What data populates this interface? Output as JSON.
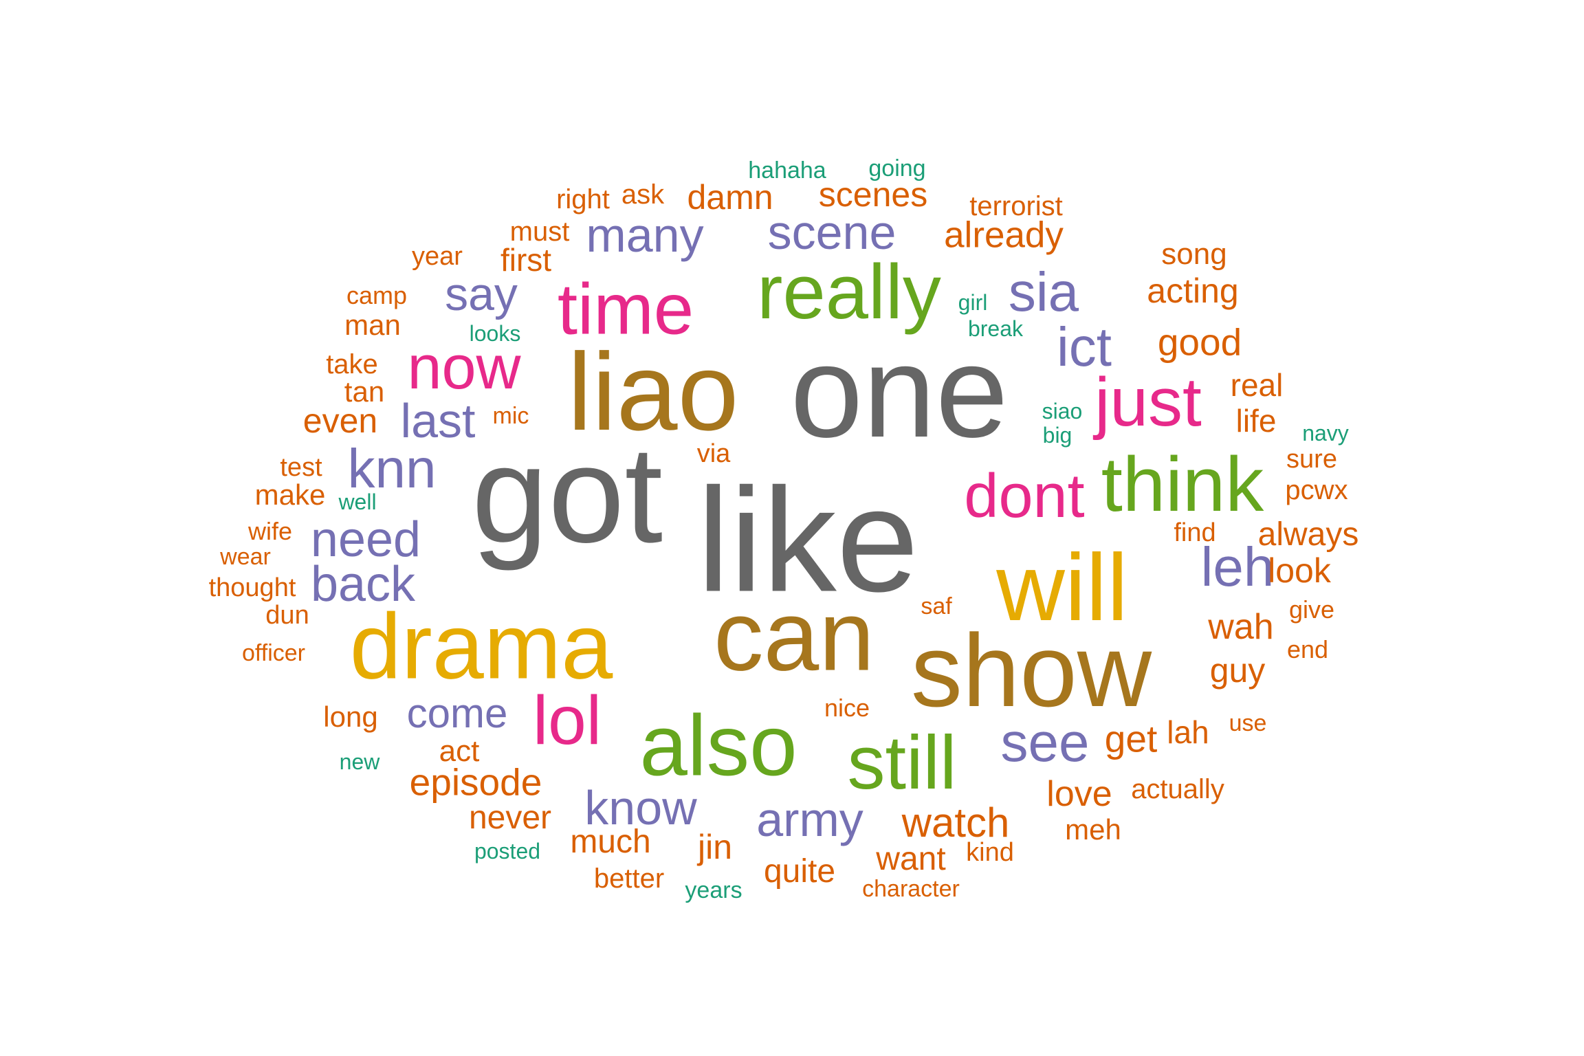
{
  "palette": {
    "gray": "#666666",
    "olive": "#a6761d",
    "mustard": "#e6ab02",
    "green": "#66a61e",
    "pink": "#e7298a",
    "purple": "#7570b3",
    "orange": "#d95f02",
    "teal": "#1b9e77"
  },
  "words": [
    {
      "text": "like",
      "weight": 100,
      "color": "gray"
    },
    {
      "text": "got",
      "weight": 90,
      "color": "gray"
    },
    {
      "text": "one",
      "weight": 88,
      "color": "gray"
    },
    {
      "text": "liao",
      "weight": 74,
      "color": "olive"
    },
    {
      "text": "show",
      "weight": 70,
      "color": "olive"
    },
    {
      "text": "can",
      "weight": 68,
      "color": "olive"
    },
    {
      "text": "drama",
      "weight": 62,
      "color": "mustard"
    },
    {
      "text": "will",
      "weight": 62,
      "color": "mustard"
    },
    {
      "text": "also",
      "weight": 58,
      "color": "green"
    },
    {
      "text": "really",
      "weight": 50,
      "color": "green"
    },
    {
      "text": "think",
      "weight": 50,
      "color": "green"
    },
    {
      "text": "still",
      "weight": 50,
      "color": "green"
    },
    {
      "text": "time",
      "weight": 44,
      "color": "pink"
    },
    {
      "text": "just",
      "weight": 44,
      "color": "pink"
    },
    {
      "text": "now",
      "weight": 40,
      "color": "pink"
    },
    {
      "text": "dont",
      "weight": 40,
      "color": "pink"
    },
    {
      "text": "lol",
      "weight": 40,
      "color": "pink"
    },
    {
      "text": "knn",
      "weight": 35,
      "color": "purple"
    },
    {
      "text": "sia",
      "weight": 35,
      "color": "purple"
    },
    {
      "text": "ict",
      "weight": 35,
      "color": "purple"
    },
    {
      "text": "leh",
      "weight": 35,
      "color": "purple"
    },
    {
      "text": "see",
      "weight": 35,
      "color": "purple"
    },
    {
      "text": "many",
      "weight": 33,
      "color": "purple"
    },
    {
      "text": "scene",
      "weight": 33,
      "color": "purple"
    },
    {
      "text": "need",
      "weight": 33,
      "color": "purple"
    },
    {
      "text": "back",
      "weight": 33,
      "color": "purple"
    },
    {
      "text": "know",
      "weight": 33,
      "color": "purple"
    },
    {
      "text": "army",
      "weight": 33,
      "color": "purple"
    },
    {
      "text": "last",
      "weight": 30,
      "color": "purple"
    },
    {
      "text": "say",
      "weight": 30,
      "color": "purple"
    },
    {
      "text": "come",
      "weight": 30,
      "color": "purple"
    },
    {
      "text": "episode",
      "weight": 24,
      "color": "orange"
    },
    {
      "text": "watch",
      "weight": 24,
      "color": "orange"
    },
    {
      "text": "get",
      "weight": 24,
      "color": "orange"
    },
    {
      "text": "good",
      "weight": 22,
      "color": "orange"
    },
    {
      "text": "already",
      "weight": 22,
      "color": "orange"
    },
    {
      "text": "damn",
      "weight": 20,
      "color": "orange"
    },
    {
      "text": "scenes",
      "weight": 20,
      "color": "orange"
    },
    {
      "text": "even",
      "weight": 20,
      "color": "orange"
    },
    {
      "text": "wah",
      "weight": 20,
      "color": "orange"
    },
    {
      "text": "always",
      "weight": 20,
      "color": "orange"
    },
    {
      "text": "look",
      "weight": 20,
      "color": "orange"
    },
    {
      "text": "guy",
      "weight": 20,
      "color": "orange"
    },
    {
      "text": "love",
      "weight": 20,
      "color": "orange"
    },
    {
      "text": "jin",
      "weight": 20,
      "color": "orange"
    },
    {
      "text": "much",
      "weight": 20,
      "color": "orange"
    },
    {
      "text": "quite",
      "weight": 20,
      "color": "orange"
    },
    {
      "text": "want",
      "weight": 20,
      "color": "orange"
    },
    {
      "text": "never",
      "weight": 20,
      "color": "orange"
    },
    {
      "text": "real",
      "weight": 19,
      "color": "orange"
    },
    {
      "text": "life",
      "weight": 19,
      "color": "orange"
    },
    {
      "text": "acting",
      "weight": 19,
      "color": "orange"
    },
    {
      "text": "first",
      "weight": 19,
      "color": "orange"
    },
    {
      "text": "lah",
      "weight": 19,
      "color": "orange"
    },
    {
      "text": "song",
      "weight": 18,
      "color": "orange"
    },
    {
      "text": "right",
      "weight": 18,
      "color": "orange"
    },
    {
      "text": "ask",
      "weight": 18,
      "color": "orange"
    },
    {
      "text": "terrorist",
      "weight": 18,
      "color": "orange"
    },
    {
      "text": "must",
      "weight": 18,
      "color": "orange"
    },
    {
      "text": "take",
      "weight": 18,
      "color": "orange"
    },
    {
      "text": "man",
      "weight": 18,
      "color": "orange"
    },
    {
      "text": "tan",
      "weight": 18,
      "color": "orange"
    },
    {
      "text": "make",
      "weight": 18,
      "color": "orange"
    },
    {
      "text": "act",
      "weight": 18,
      "color": "orange"
    },
    {
      "text": "long",
      "weight": 18,
      "color": "orange"
    },
    {
      "text": "meh",
      "weight": 18,
      "color": "orange"
    },
    {
      "text": "better",
      "weight": 18,
      "color": "orange"
    },
    {
      "text": "actually",
      "weight": 17,
      "color": "orange"
    },
    {
      "text": "pcwx",
      "weight": 17,
      "color": "orange"
    },
    {
      "text": "sure",
      "weight": 17,
      "color": "orange"
    },
    {
      "text": "find",
      "weight": 17,
      "color": "orange"
    },
    {
      "text": "kind",
      "weight": 17,
      "color": "orange"
    },
    {
      "text": "test",
      "weight": 16,
      "color": "orange"
    },
    {
      "text": "year",
      "weight": 16,
      "color": "orange"
    },
    {
      "text": "camp",
      "weight": 16,
      "color": "orange"
    },
    {
      "text": "thought",
      "weight": 16,
      "color": "orange"
    },
    {
      "text": "dun",
      "weight": 16,
      "color": "orange"
    },
    {
      "text": "wife",
      "weight": 16,
      "color": "orange"
    },
    {
      "text": "give",
      "weight": 16,
      "color": "orange"
    },
    {
      "text": "end",
      "weight": 16,
      "color": "orange"
    },
    {
      "text": "use",
      "weight": 16,
      "color": "orange"
    },
    {
      "text": "nice",
      "weight": 16,
      "color": "orange"
    },
    {
      "text": "via",
      "weight": 16,
      "color": "orange"
    },
    {
      "text": "officer",
      "weight": 15,
      "color": "orange"
    },
    {
      "text": "wear",
      "weight": 15,
      "color": "orange"
    },
    {
      "text": "mic",
      "weight": 15,
      "color": "orange"
    },
    {
      "text": "saf",
      "weight": 15,
      "color": "orange"
    },
    {
      "text": "character",
      "weight": 15,
      "color": "orange"
    },
    {
      "text": "hahaha",
      "weight": 15,
      "color": "teal"
    },
    {
      "text": "going",
      "weight": 15,
      "color": "teal"
    },
    {
      "text": "girl",
      "weight": 15,
      "color": "teal"
    },
    {
      "text": "break",
      "weight": 15,
      "color": "teal"
    },
    {
      "text": "looks",
      "weight": 15,
      "color": "teal"
    },
    {
      "text": "siao",
      "weight": 15,
      "color": "teal"
    },
    {
      "text": "big",
      "weight": 15,
      "color": "teal"
    },
    {
      "text": "navy",
      "weight": 15,
      "color": "teal"
    },
    {
      "text": "well",
      "weight": 15,
      "color": "teal"
    },
    {
      "text": "new",
      "weight": 15,
      "color": "teal"
    },
    {
      "text": "posted",
      "weight": 15,
      "color": "teal"
    },
    {
      "text": "years",
      "weight": 15,
      "color": "teal"
    }
  ]
}
